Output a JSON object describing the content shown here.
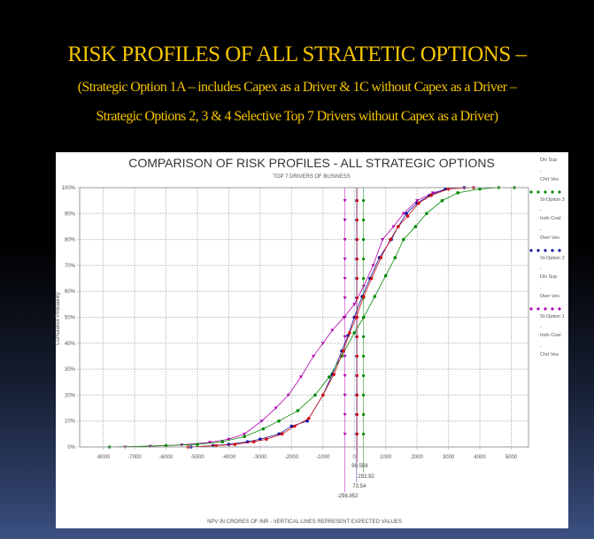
{
  "slide": {
    "title": "RISK PROFILES OF ALL  STRATETIC OPTIONS –",
    "subtitle_line1": "(Strategic  Option 1A – includes  Capex  as a Driver  & 1C  without  Capex   as a Driver  –",
    "subtitle_line2": "Strategic  Options 2, 3 & 4  Selective  Top 7  Drivers  without  Capex  as a  Driver)"
  },
  "chart_data": {
    "type": "line",
    "title": "COMPARISON OF RISK PROFILES - ALL STRATEGIC OPTIONS",
    "subtitle": "TOP 7 DRIVERS OF BUSINESS",
    "xlabel": "NPV IN CRORES OF INR - VERTICAL LINES REPRESENT EXPECTED VALUES",
    "ylabel": "Cumulative Probability",
    "xlim": [
      -8750,
      5550
    ],
    "ylim": [
      0,
      100
    ],
    "x_ticks": [
      "-8000",
      "-7000",
      "-6000",
      "-5000",
      "-4000",
      "-3000",
      "-2000",
      "-1000",
      "0",
      "1000",
      "2000",
      "3000",
      "4000",
      "5000"
    ],
    "x_tick_values": [
      -8000,
      -7000,
      -6000,
      -5000,
      -4000,
      -3000,
      -2000,
      -1000,
      0,
      1000,
      2000,
      3000,
      4000,
      5000
    ],
    "y_ticks": [
      "0%",
      "10%",
      "20%",
      "30%",
      "40%",
      "50%",
      "60%",
      "70%",
      "80%",
      "90%",
      "100%"
    ],
    "grid": true,
    "legend_position": "right",
    "series": [
      {
        "name": "St-Option 1",
        "color": "#b000b0",
        "marker": "triangle",
        "x": [
          -7300,
          -6500,
          -5500,
          -4600,
          -4000,
          -3500,
          -2950,
          -2500,
          -2100,
          -1700,
          -1300,
          -1000,
          -700,
          -330,
          0,
          300,
          600,
          900,
          1250,
          1570,
          2000,
          2500,
          3000,
          3500
        ],
        "y": [
          0,
          0.3,
          0.8,
          1.8,
          3,
          5,
          10,
          15,
          20,
          27,
          35,
          40,
          45,
          50,
          55,
          62,
          70,
          80,
          85,
          90,
          95,
          98,
          99.5,
          100
        ],
        "expected_value": -298.852,
        "expected_label": "-298.852"
      },
      {
        "name": "St-Option 2",
        "color": "#1010a0",
        "marker": "circle",
        "x": [
          -5200,
          -4500,
          -4000,
          -3400,
          -3000,
          -2400,
          -2000,
          -1500,
          -1000,
          -700,
          -400,
          -200,
          0,
          250,
          500,
          800,
          1180,
          1400,
          1660,
          2000,
          2400,
          2900,
          3500
        ],
        "y": [
          0,
          0.5,
          1,
          2,
          3,
          5,
          8,
          10,
          20,
          28,
          37,
          43,
          50,
          58,
          65,
          73,
          80,
          85,
          90,
          94,
          97,
          99.5,
          100
        ],
        "expected_value": 73.54,
        "expected_label": "73.54"
      },
      {
        "name": "St-Option 3",
        "color": "#008a00",
        "marker": "circle",
        "x": [
          -7800,
          -6000,
          -5000,
          -4200,
          -3500,
          -2900,
          -2400,
          -1800,
          -1250,
          -800,
          -400,
          0,
          300,
          650,
          1000,
          1300,
          1570,
          1950,
          2300,
          2800,
          3300,
          4000,
          4600,
          5100
        ],
        "y": [
          0,
          0.5,
          1,
          2,
          4,
          7,
          10,
          14,
          20,
          27,
          35,
          44,
          50,
          58,
          66,
          73,
          80,
          85,
          90,
          95,
          98,
          99.5,
          100,
          100
        ],
        "expected_value": 292.92,
        "expected_label": "292.92"
      },
      {
        "color": "#d01010",
        "marker": "circle",
        "x": [
          -5300,
          -4400,
          -3800,
          -3200,
          -2800,
          -2300,
          -1900,
          -1450,
          -1000,
          -650,
          -350,
          -150,
          60,
          300,
          550,
          850,
          1150,
          1400,
          1700,
          2050,
          2450,
          3000,
          3800
        ],
        "y": [
          0,
          0.5,
          1,
          2,
          3,
          5,
          8,
          11,
          20,
          28,
          37,
          44,
          50,
          58,
          65,
          73,
          80,
          85,
          89,
          94,
          97,
          99.5,
          100
        ],
        "expected_value": 90.558,
        "expected_label": "90.558"
      }
    ],
    "legend_entries": [
      {
        "text": "Div Sup"
      },
      {
        "text": "-"
      },
      {
        "text": "Chrt Ves"
      },
      {
        "text": "St-Option 3",
        "color": "#008a00"
      },
      {
        "text": "-"
      },
      {
        "text": "Indo Coal"
      },
      {
        "text": "-"
      },
      {
        "text": "Own Ves"
      },
      {
        "text": "St-Option 2",
        "color": "#1010a0"
      },
      {
        "text": "-"
      },
      {
        "text": "Div Sup"
      },
      {
        "text": "-"
      },
      {
        "text": "Own Ves"
      },
      {
        "text": "St-Option 1",
        "color": "#b000b0"
      },
      {
        "text": "-"
      },
      {
        "text": "Indo Coal"
      },
      {
        "text": "-"
      },
      {
        "text": "Chrt Ves"
      }
    ]
  }
}
